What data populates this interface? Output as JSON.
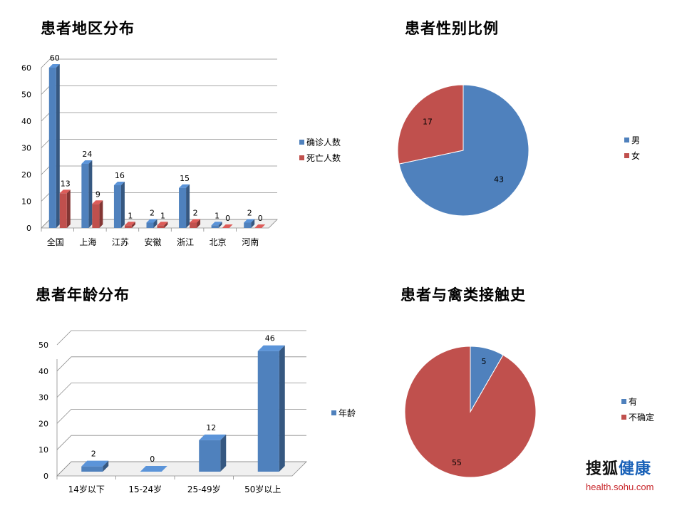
{
  "brand": {
    "logo_part1": "搜狐",
    "logo_part2": "健康",
    "url": "health.sohu.com"
  },
  "colors": {
    "blue": "#4f81bd",
    "red": "#c0504d",
    "grid": "#8c8c8c"
  },
  "chart_data": [
    {
      "type": "bar",
      "title": "患者地区分布",
      "categories": [
        "全国",
        "上海",
        "江苏",
        "安徽",
        "浙江",
        "北京",
        "河南"
      ],
      "series": [
        {
          "name": "确诊人数",
          "values": [
            60,
            24,
            16,
            2,
            15,
            1,
            2
          ]
        },
        {
          "name": "死亡人数",
          "values": [
            13,
            9,
            1,
            1,
            2,
            0,
            0
          ]
        }
      ],
      "yticks": [
        "0",
        "10",
        "20",
        "30",
        "40",
        "50",
        "60"
      ],
      "ylim": [
        0,
        60
      ],
      "grid": true,
      "legend": "right"
    },
    {
      "type": "pie",
      "title": "患者性别比例",
      "labels": [
        "男",
        "女"
      ],
      "values": [
        43,
        17
      ],
      "legend": "right"
    },
    {
      "type": "bar",
      "title": "患者年龄分布",
      "categories": [
        "14岁以下",
        "15-24岁",
        "25-49岁",
        "50岁以上"
      ],
      "series": [
        {
          "name": "年龄",
          "values": [
            2,
            0,
            12,
            46
          ]
        }
      ],
      "yticks": [
        "0",
        "10",
        "20",
        "30",
        "40",
        "50"
      ],
      "ylim": [
        0,
        50
      ],
      "grid": true,
      "legend": "right"
    },
    {
      "type": "pie",
      "title": "患者与禽类接触史",
      "labels": [
        "有",
        "不确定"
      ],
      "values": [
        5,
        55
      ],
      "legend": "right"
    }
  ]
}
